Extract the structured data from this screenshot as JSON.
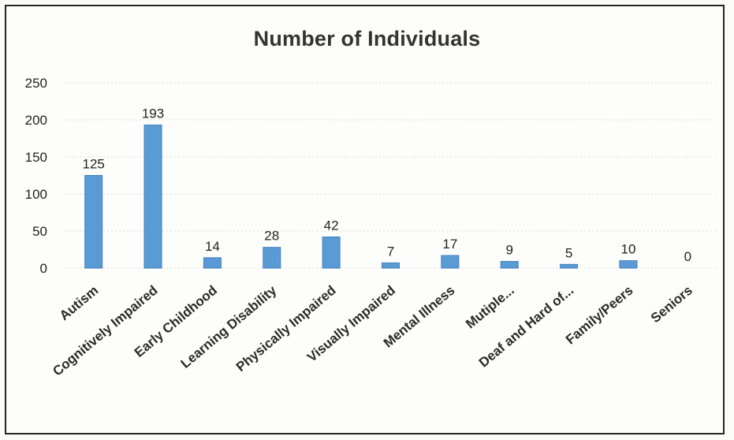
{
  "chart_data": {
    "type": "bar",
    "title": "Number of Individuals",
    "categories": [
      "Autism",
      "Cognitively Impaired",
      "Early Childhood",
      "Learning Disability",
      "Physically Impaired",
      "Visually Impaired",
      "Mental Illness",
      "Mutiple...",
      "Deaf and Hard of...",
      "Family/Peers",
      "Seniors"
    ],
    "values": [
      125,
      193,
      14,
      28,
      42,
      7,
      17,
      9,
      5,
      10,
      0
    ],
    "ylim": [
      0,
      250
    ],
    "yticks": [
      0,
      50,
      100,
      150,
      200,
      250
    ],
    "grid": true,
    "legend": "none",
    "bar_color": "#5b9bd5"
  }
}
